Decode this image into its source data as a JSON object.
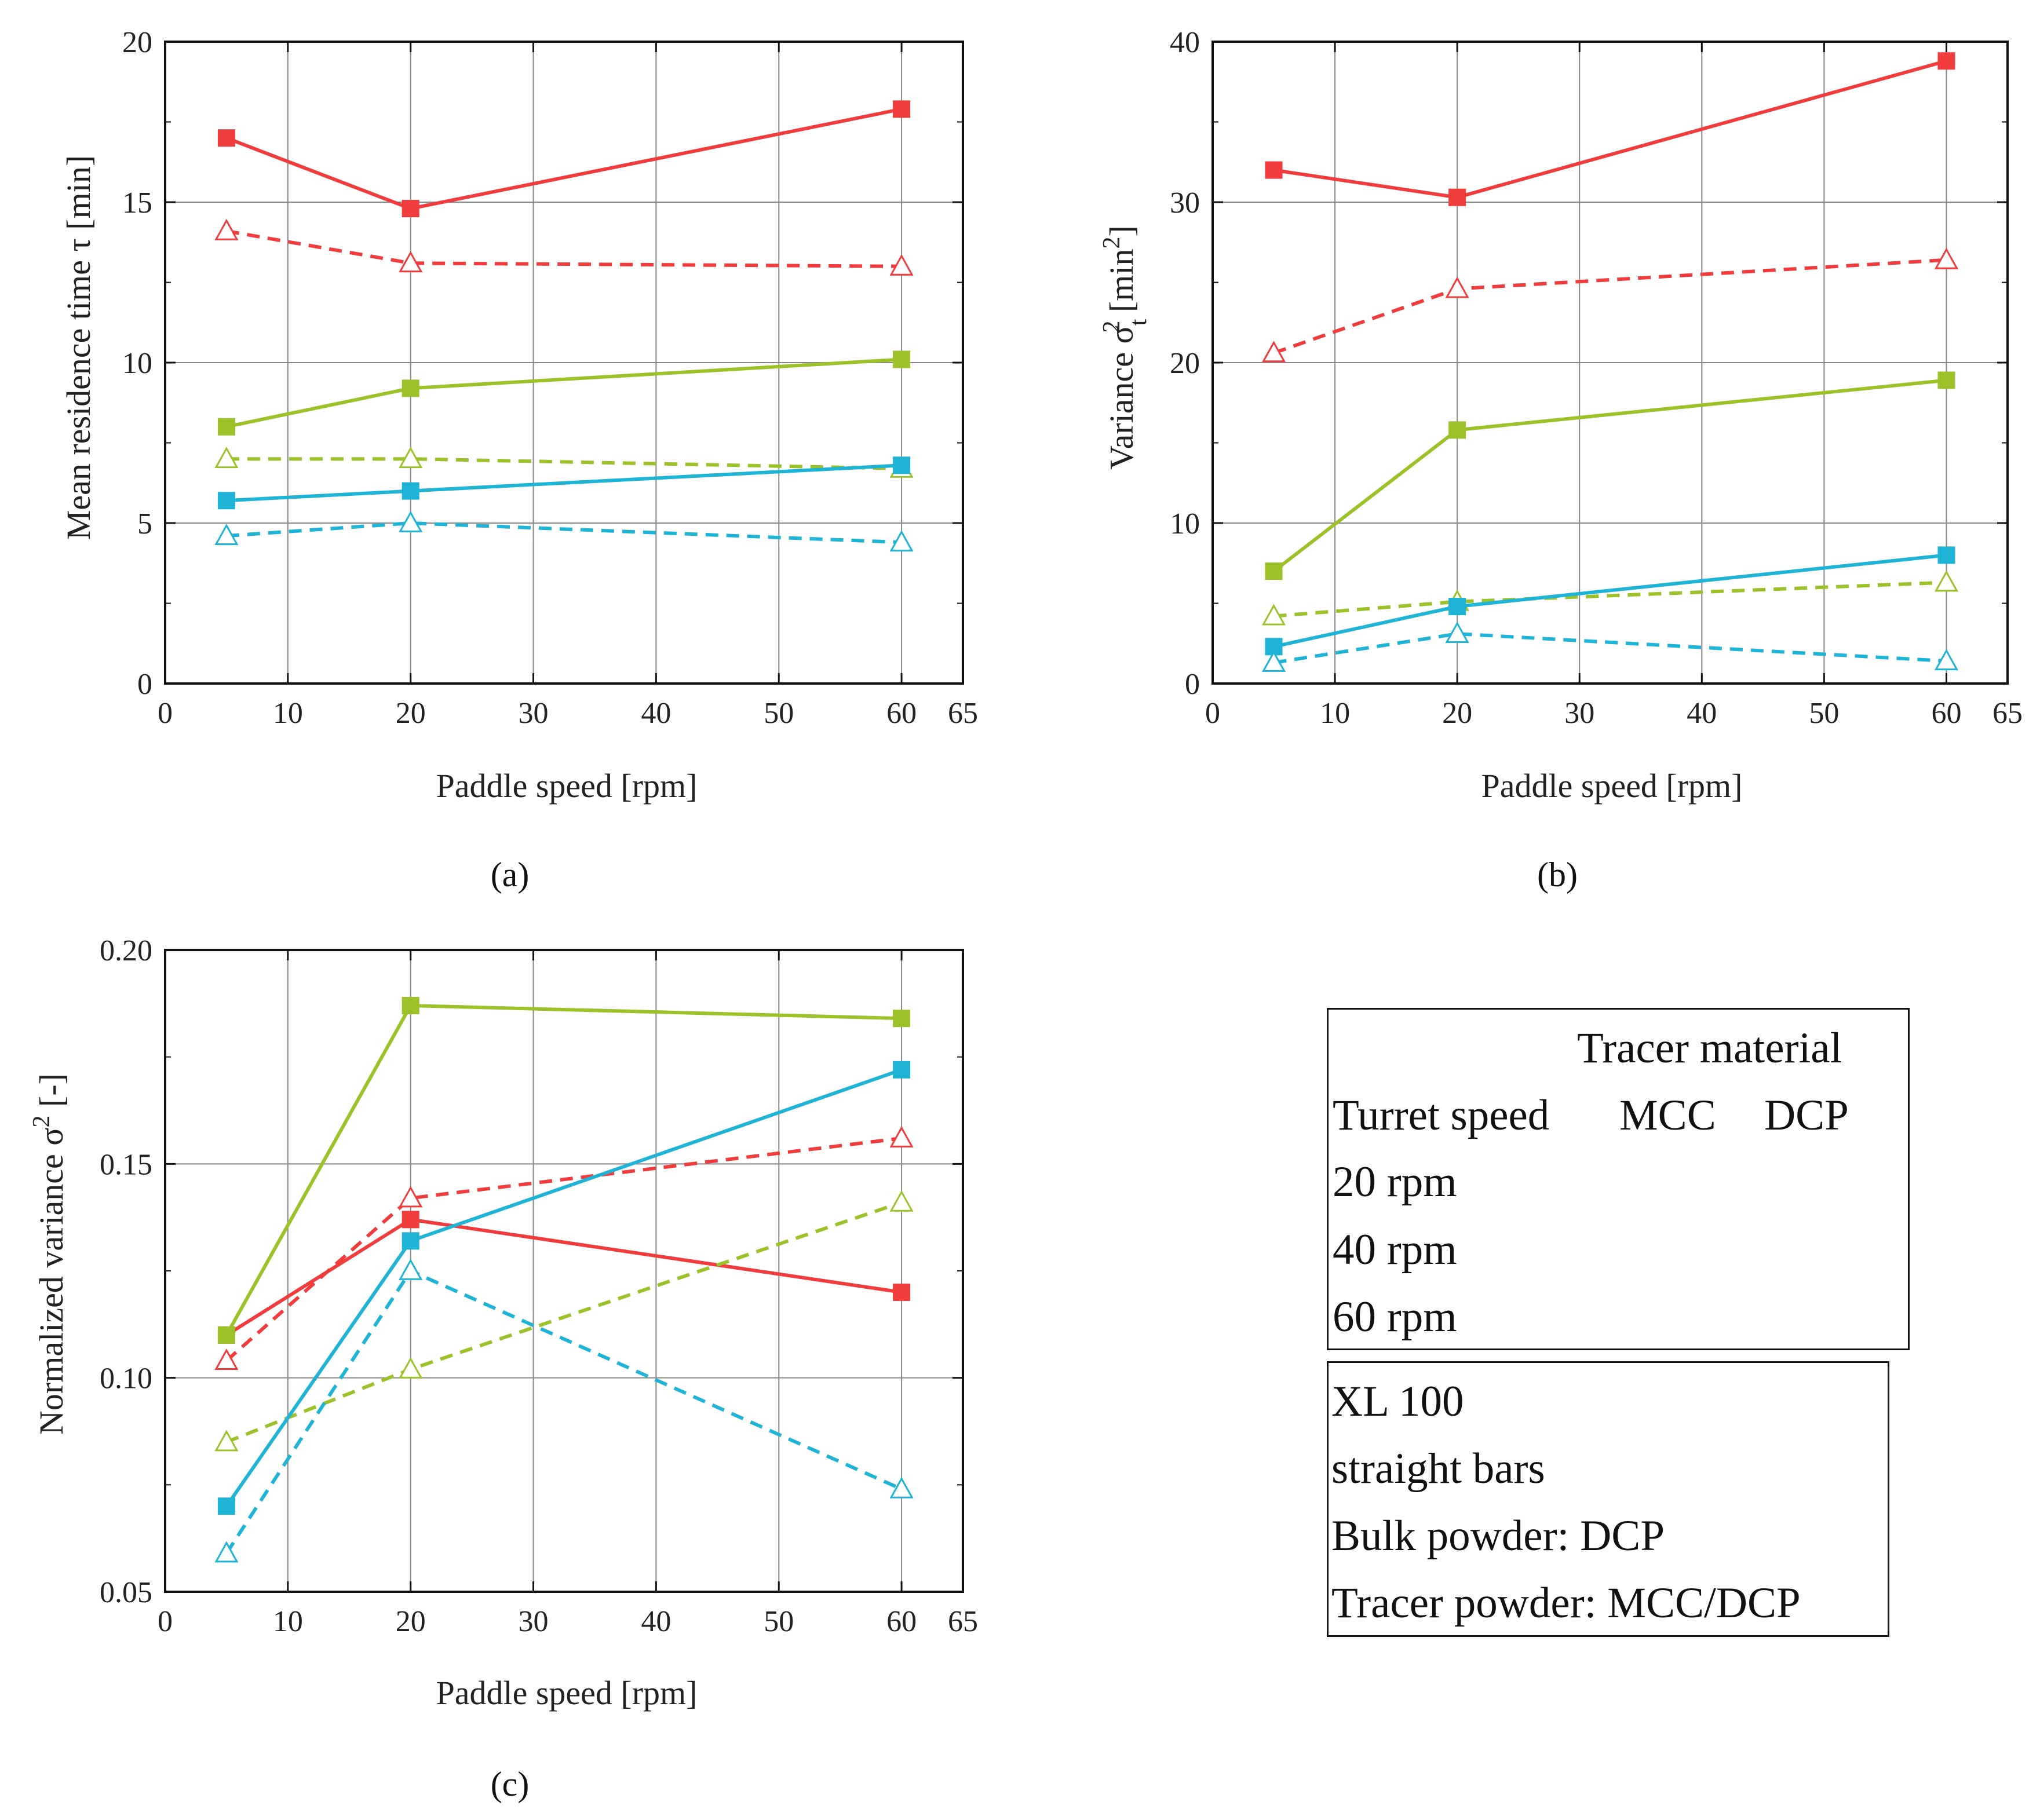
{
  "chart_data": [
    {
      "type": "line",
      "panel": "a",
      "xlabel": "Paddle speed [rpm]",
      "ylabel": "Mean residence time τ [min]",
      "xlim": [
        0,
        65
      ],
      "ylim": [
        0,
        20
      ],
      "xticks": [
        "0",
        "10",
        "20",
        "30",
        "40",
        "50",
        "60",
        "65"
      ],
      "yticks": [
        "0",
        "5",
        "10",
        "15",
        "20"
      ],
      "x": [
        5,
        20,
        60
      ],
      "series": [
        {
          "name": "20 rpm MCC",
          "color": "#f03c3c",
          "style": "solid",
          "marker": "square",
          "values": [
            17.0,
            14.8,
            17.9
          ]
        },
        {
          "name": "20 rpm DCP",
          "color": "#f03c3c",
          "style": "dashed",
          "marker": "triangle",
          "values": [
            14.1,
            13.1,
            13.0
          ]
        },
        {
          "name": "40 rpm MCC",
          "color": "#9cc22a",
          "style": "solid",
          "marker": "square",
          "values": [
            8.0,
            9.2,
            10.1
          ]
        },
        {
          "name": "40 rpm DCP",
          "color": "#9cc22a",
          "style": "dashed",
          "marker": "triangle",
          "values": [
            7.0,
            7.0,
            6.7
          ]
        },
        {
          "name": "60 rpm MCC",
          "color": "#1fb4d6",
          "style": "solid",
          "marker": "square",
          "values": [
            5.7,
            6.0,
            6.8
          ]
        },
        {
          "name": "60 rpm DCP",
          "color": "#1fb4d6",
          "style": "dashed",
          "marker": "triangle",
          "values": [
            4.6,
            5.0,
            4.4
          ]
        }
      ]
    },
    {
      "type": "line",
      "panel": "b",
      "xlabel": "Paddle speed [rpm]",
      "ylabel": "Variance σt² [min²]",
      "xlim": [
        0,
        65
      ],
      "ylim": [
        0,
        40
      ],
      "xticks": [
        "0",
        "10",
        "20",
        "30",
        "40",
        "50",
        "60",
        "65"
      ],
      "yticks": [
        "0",
        "10",
        "20",
        "30",
        "40"
      ],
      "x": [
        5,
        20,
        60
      ],
      "series": [
        {
          "name": "20 rpm MCC",
          "color": "#f03c3c",
          "style": "solid",
          "marker": "square",
          "values": [
            32.0,
            30.3,
            38.8
          ]
        },
        {
          "name": "20 rpm DCP",
          "color": "#f03c3c",
          "style": "dashed",
          "marker": "triangle",
          "values": [
            20.6,
            24.6,
            26.4
          ]
        },
        {
          "name": "40 rpm MCC",
          "color": "#9cc22a",
          "style": "solid",
          "marker": "square",
          "values": [
            7.0,
            15.8,
            18.9
          ]
        },
        {
          "name": "40 rpm DCP",
          "color": "#9cc22a",
          "style": "dashed",
          "marker": "triangle",
          "values": [
            4.2,
            5.1,
            6.3
          ]
        },
        {
          "name": "60 rpm MCC",
          "color": "#1fb4d6",
          "style": "solid",
          "marker": "square",
          "values": [
            2.3,
            4.8,
            8.0
          ]
        },
        {
          "name": "60 rpm DCP",
          "color": "#1fb4d6",
          "style": "dashed",
          "marker": "triangle",
          "values": [
            1.3,
            3.1,
            1.4
          ]
        }
      ]
    },
    {
      "type": "line",
      "panel": "c",
      "xlabel": "Paddle speed [rpm]",
      "ylabel": "Normalized variance σ² [-]",
      "xlim": [
        0,
        65
      ],
      "ylim": [
        0.05,
        0.2
      ],
      "xticks": [
        "0",
        "10",
        "20",
        "30",
        "40",
        "50",
        "60",
        "65"
      ],
      "yticks": [
        "0.05",
        "0.10",
        "0.15",
        "0.20"
      ],
      "x": [
        5,
        20,
        60
      ],
      "series": [
        {
          "name": "20 rpm MCC",
          "color": "#f03c3c",
          "style": "solid",
          "marker": "square",
          "values": [
            0.11,
            0.137,
            0.12
          ]
        },
        {
          "name": "20 rpm DCP",
          "color": "#f03c3c",
          "style": "dashed",
          "marker": "triangle",
          "values": [
            0.104,
            0.142,
            0.156
          ]
        },
        {
          "name": "40 rpm MCC",
          "color": "#9cc22a",
          "style": "solid",
          "marker": "square",
          "values": [
            0.11,
            0.187,
            0.184
          ]
        },
        {
          "name": "40 rpm DCP",
          "color": "#9cc22a",
          "style": "dashed",
          "marker": "triangle",
          "values": [
            0.085,
            0.102,
            0.141
          ]
        },
        {
          "name": "60 rpm MCC",
          "color": "#1fb4d6",
          "style": "solid",
          "marker": "square",
          "values": [
            0.07,
            0.132,
            0.172
          ]
        },
        {
          "name": "60 rpm DCP",
          "color": "#1fb4d6",
          "style": "dashed",
          "marker": "triangle",
          "values": [
            0.059,
            0.125,
            0.074
          ]
        }
      ]
    }
  ],
  "panel_labels": {
    "a": "(a)",
    "b": "(b)",
    "c": "(c)"
  },
  "axis_labels": {
    "x": "Paddle speed [rpm]",
    "a_y": "Mean residence time τ [min]",
    "b_y_pre": "Variance σ",
    "b_y_sub": "t",
    "b_y_sup": "2",
    "b_y_post": " [min",
    "b_y_post_sup": "2",
    "b_y_end": "]",
    "c_y_pre": "Normalized variance σ",
    "c_y_sup": "2",
    "c_y_post": " [-]"
  },
  "legend": {
    "title": "Tracer material",
    "col_turret": "Turret speed",
    "col_mcc": "MCC",
    "col_dcp": "DCP",
    "rows": [
      {
        "label": "20 rpm",
        "color": "#f03c3c"
      },
      {
        "label": "40 rpm",
        "color": "#9cc22a"
      },
      {
        "label": "60 rpm",
        "color": "#1fb4d6"
      }
    ]
  },
  "info": {
    "line1": "XL 100",
    "line2": "straight bars",
    "line3": "Bulk powder: DCP",
    "line4": "Tracer powder: MCC/DCP"
  }
}
